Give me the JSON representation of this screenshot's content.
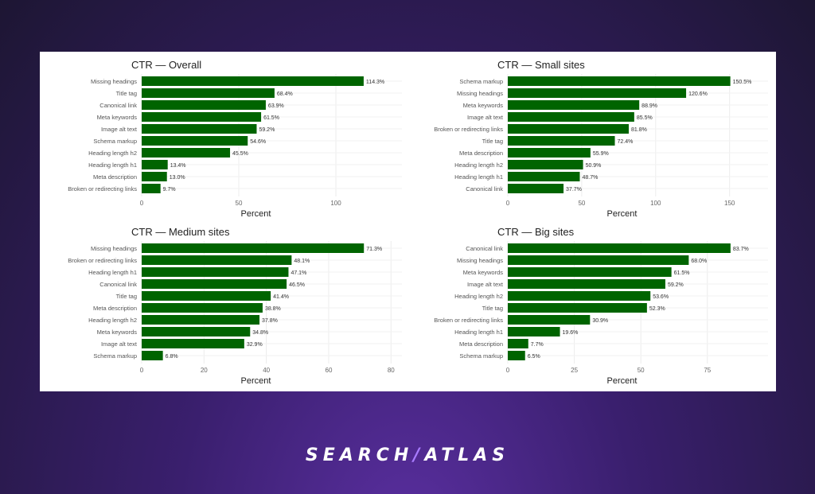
{
  "colors": {
    "bar": "#006400",
    "background": "#2b1a4f",
    "panel": "#ffffff"
  },
  "logo": {
    "left": "SEARCH",
    "right": "ATLAS"
  },
  "chart_data": [
    {
      "type": "bar",
      "orientation": "horizontal",
      "title": "CTR — Overall",
      "xlabel": "Percent",
      "xlim": [
        0,
        134
      ],
      "xticks": [
        0,
        50,
        100
      ],
      "grid": true,
      "categories": [
        "Missing headings",
        "Title tag",
        "Canonical link",
        "Meta keywords",
        "Image alt text",
        "Schema markup",
        "Heading length h2",
        "Heading length h1",
        "Meta description",
        "Broken or redirecting links"
      ],
      "values": [
        114.3,
        68.4,
        63.9,
        61.5,
        59.2,
        54.6,
        45.5,
        13.4,
        13.0,
        9.7
      ],
      "labels": [
        "114.3%",
        "68.4%",
        "63.9%",
        "61.5%",
        "59.2%",
        "54.6%",
        "45.5%",
        "13.4%",
        "13.0%",
        "9.7%"
      ]
    },
    {
      "type": "bar",
      "orientation": "horizontal",
      "title": "CTR — Small sites",
      "xlabel": "Percent",
      "xlim": [
        0,
        176
      ],
      "xticks": [
        0,
        50,
        100,
        150
      ],
      "grid": true,
      "categories": [
        "Schema markup",
        "Missing headings",
        "Meta keywords",
        "Image alt text",
        "Broken or redirecting links",
        "Title tag",
        "Meta description",
        "Heading length h2",
        "Heading length h1",
        "Canonical link"
      ],
      "values": [
        150.5,
        120.6,
        88.9,
        85.5,
        81.8,
        72.4,
        55.9,
        50.9,
        48.7,
        37.7
      ],
      "labels": [
        "150.5%",
        "120.6%",
        "88.9%",
        "85.5%",
        "81.8%",
        "72.4%",
        "55.9%",
        "50.9%",
        "48.7%",
        "37.7%"
      ]
    },
    {
      "type": "bar",
      "orientation": "horizontal",
      "title": "CTR — Medium sites",
      "xlabel": "Percent",
      "xlim": [
        0,
        83.5
      ],
      "xticks": [
        0,
        20,
        40,
        60,
        80
      ],
      "grid": true,
      "categories": [
        "Missing headings",
        "Broken or redirecting links",
        "Heading length h1",
        "Canonical link",
        "Title tag",
        "Meta description",
        "Heading length h2",
        "Meta keywords",
        "Image alt text",
        "Schema markup"
      ],
      "values": [
        71.3,
        48.1,
        47.1,
        46.5,
        41.4,
        38.8,
        37.8,
        34.8,
        32.9,
        6.8
      ],
      "labels": [
        "71.3%",
        "48.1%",
        "47.1%",
        "46.5%",
        "41.4%",
        "38.8%",
        "37.8%",
        "34.8%",
        "32.9%",
        "6.8%"
      ]
    },
    {
      "type": "bar",
      "orientation": "horizontal",
      "title": "CTR — Big sites",
      "xlabel": "Percent",
      "xlim": [
        0,
        97.8
      ],
      "xticks": [
        0,
        25,
        50,
        75
      ],
      "grid": true,
      "categories": [
        "Canonical link",
        "Missing headings",
        "Meta keywords",
        "Image alt text",
        "Heading length h2",
        "Title tag",
        "Broken or redirecting links",
        "Heading length h1",
        "Meta description",
        "Schema markup"
      ],
      "values": [
        83.7,
        68.0,
        61.5,
        59.2,
        53.6,
        52.3,
        30.9,
        19.6,
        7.7,
        6.5
      ],
      "labels": [
        "83.7%",
        "68.0%",
        "61.5%",
        "59.2%",
        "53.6%",
        "52.3%",
        "30.9%",
        "19.6%",
        "7.7%",
        "6.5%"
      ]
    }
  ]
}
